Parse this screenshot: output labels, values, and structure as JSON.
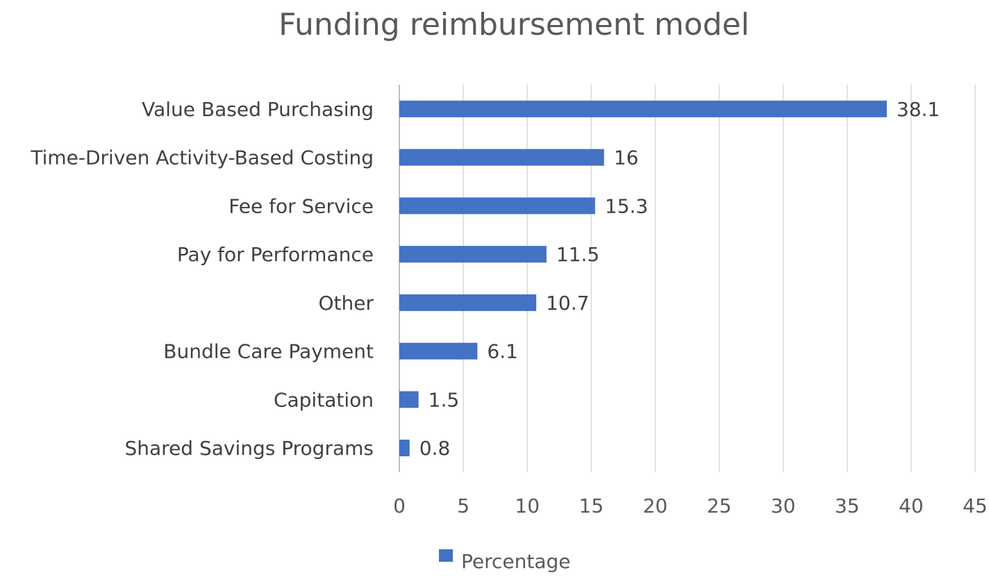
{
  "chart_data": {
    "type": "bar",
    "orientation": "horizontal",
    "title": "Funding reimbursement model",
    "categories": [
      "Value Based Purchasing",
      "Time-Driven Activity-Based Costing",
      "Fee for Service",
      "Pay for Performance",
      "Other",
      "Bundle Care Payment",
      "Capitation",
      "Shared Savings Programs"
    ],
    "series": [
      {
        "name": "Percentage",
        "color": "#4472c4",
        "values": [
          38.1,
          16,
          15.3,
          11.5,
          10.7,
          6.1,
          1.5,
          0.8
        ],
        "labels": [
          "38.1",
          "16",
          "15.3",
          "11.5",
          "10.7",
          "6.1",
          "1.5",
          "0.8"
        ]
      }
    ],
    "xlim": [
      0,
      45
    ],
    "xticks": [
      0,
      5,
      10,
      15,
      20,
      25,
      30,
      35,
      40,
      45
    ],
    "xtick_labels": [
      "0",
      "5",
      "10",
      "15",
      "20",
      "25",
      "30",
      "35",
      "40",
      "45"
    ],
    "grid": "vertical",
    "legend": "bottom"
  }
}
